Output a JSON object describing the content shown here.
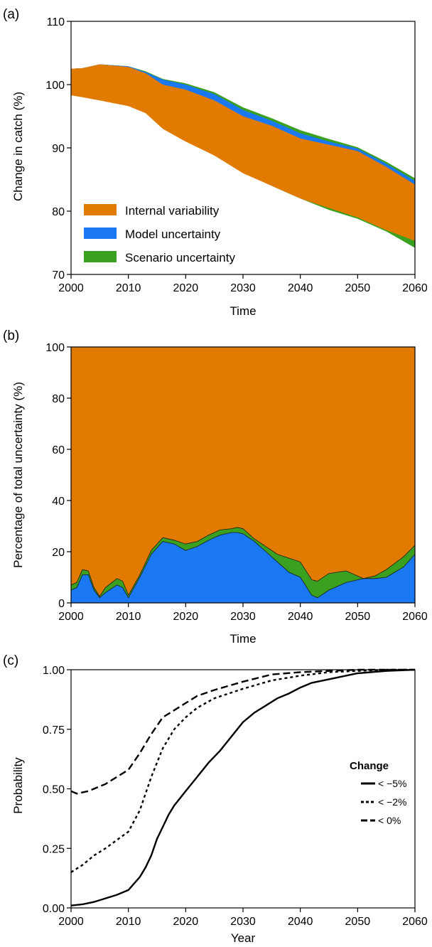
{
  "colors": {
    "internal": "#E07B00",
    "model": "#1A78F2",
    "scenario": "#3AA01F",
    "axis": "#000000"
  },
  "chart_data": [
    {
      "panel_label": "(a)",
      "type": "area",
      "xlabel": "Time",
      "ylabel": "Change in catch (%)",
      "xlim": [
        2000,
        2060
      ],
      "ylim": [
        70,
        110
      ],
      "xticks": [
        2000,
        2010,
        2020,
        2030,
        2040,
        2050,
        2060
      ],
      "yticks": [
        70,
        80,
        90,
        100,
        110
      ],
      "legend_position": "bottom-left",
      "series": [
        {
          "name": "Internal variability",
          "color_key": "internal",
          "x": [
            2000,
            2002,
            2005,
            2010,
            2013,
            2016,
            2020,
            2025,
            2030,
            2035,
            2040,
            2045,
            2050,
            2055,
            2060
          ],
          "upper": [
            102.5,
            102.6,
            103.2,
            102.8,
            101.8,
            100.0,
            99.2,
            97.5,
            95.0,
            93.5,
            91.5,
            90.5,
            89.5,
            87.0,
            84.2
          ],
          "lower": [
            98.3,
            98.0,
            97.5,
            96.6,
            95.5,
            93.0,
            91.0,
            88.8,
            86.0,
            84.0,
            82.0,
            80.5,
            79.0,
            77.0,
            75.3
          ]
        },
        {
          "name": "Model uncertainty",
          "color_key": "model",
          "x": [
            2000,
            2002,
            2005,
            2010,
            2013,
            2016,
            2020,
            2025,
            2030,
            2035,
            2040,
            2045,
            2050,
            2055,
            2060
          ],
          "upper": [
            102.5,
            102.6,
            103.2,
            102.9,
            102.0,
            100.8,
            100.0,
            98.5,
            96.0,
            94.3,
            92.3,
            91.0,
            89.9,
            87.5,
            84.8
          ],
          "lower": [
            98.7,
            98.3,
            97.8,
            96.8,
            95.7,
            93.5,
            91.5,
            89.6,
            86.8,
            84.6,
            82.5,
            81.0,
            79.4,
            77.5,
            75.8
          ]
        },
        {
          "name": "Scenario uncertainty",
          "color_key": "scenario",
          "x": [
            2000,
            2002,
            2005,
            2010,
            2013,
            2016,
            2020,
            2025,
            2030,
            2035,
            2040,
            2045,
            2050,
            2055,
            2060
          ],
          "upper": [
            102.5,
            102.6,
            103.2,
            102.9,
            102.1,
            100.9,
            100.2,
            98.8,
            96.4,
            94.7,
            92.8,
            91.4,
            90.1,
            87.8,
            85.2
          ],
          "lower": [
            98.7,
            98.3,
            97.8,
            96.8,
            95.6,
            93.3,
            91.3,
            89.3,
            86.4,
            84.0,
            82.0,
            80.2,
            78.8,
            76.8,
            74.2
          ]
        }
      ]
    },
    {
      "panel_label": "(b)",
      "type": "area",
      "xlabel": "Time",
      "ylabel": "Percentage of total uncertainty (%)",
      "xlim": [
        2000,
        2060
      ],
      "ylim": [
        0,
        100
      ],
      "xticks": [
        2000,
        2010,
        2020,
        2030,
        2040,
        2050,
        2060
      ],
      "yticks": [
        0,
        20,
        40,
        60,
        80,
        100
      ],
      "x": [
        2000,
        2001,
        2002,
        2003,
        2004,
        2005,
        2006,
        2008,
        2009,
        2010,
        2012,
        2014,
        2016,
        2018,
        2020,
        2022,
        2024,
        2026,
        2028,
        2029,
        2030,
        2032,
        2034,
        2036,
        2038,
        2040,
        2042,
        2043,
        2045,
        2048,
        2050,
        2051,
        2053,
        2055,
        2058,
        2060
      ],
      "series": [
        {
          "name": "Model uncertainty",
          "color_key": "model",
          "values": [
            5,
            6,
            11,
            11,
            5,
            2,
            4,
            7,
            6,
            2,
            10,
            19,
            24,
            23,
            20.5,
            22,
            24.5,
            26.5,
            27.5,
            27.5,
            27,
            24,
            20,
            16,
            12,
            10,
            3,
            2,
            5,
            8,
            9,
            9.5,
            9.5,
            10,
            14,
            19
          ]
        },
        {
          "name": "Scenario uncertainty",
          "color_key": "scenario",
          "values": [
            7,
            8,
            13,
            12.5,
            6,
            2.5,
            6,
            9.5,
            8.5,
            3,
            11,
            20.5,
            25.5,
            24.5,
            23,
            24,
            26.5,
            28.5,
            29,
            29.5,
            29,
            25,
            22,
            19,
            17.5,
            16,
            9,
            8.5,
            11.5,
            12.5,
            10.5,
            9.5,
            10.5,
            13,
            18,
            22.5
          ]
        },
        {
          "name": "Internal variability",
          "color_key": "internal",
          "values": [
            100,
            100,
            100,
            100,
            100,
            100,
            100,
            100,
            100,
            100,
            100,
            100,
            100,
            100,
            100,
            100,
            100,
            100,
            100,
            100,
            100,
            100,
            100,
            100,
            100,
            100,
            100,
            100,
            100,
            100,
            100,
            100,
            100,
            100,
            100,
            100
          ]
        }
      ]
    },
    {
      "panel_label": "(c)",
      "type": "line",
      "xlabel": "Year",
      "ylabel": "Probability",
      "xlim": [
        2000,
        2060
      ],
      "ylim": [
        0,
        1
      ],
      "xticks": [
        2000,
        2010,
        2020,
        2030,
        2040,
        2050,
        2060
      ],
      "yticks": [
        "0.00",
        "0.25",
        "0.50",
        "0.75",
        "1.00"
      ],
      "legend_title": "Change",
      "legend_position": "right",
      "series": [
        {
          "name": "< −5%",
          "dash": "solid",
          "x": [
            2000,
            2002,
            2004,
            2006,
            2008,
            2010,
            2012,
            2013,
            2014,
            2015,
            2016,
            2017,
            2018,
            2020,
            2022,
            2024,
            2026,
            2028,
            2030,
            2032,
            2034,
            2036,
            2038,
            2040,
            2042,
            2045,
            2050,
            2055,
            2060
          ],
          "y": [
            0.01,
            0.015,
            0.025,
            0.04,
            0.055,
            0.075,
            0.13,
            0.17,
            0.22,
            0.29,
            0.34,
            0.39,
            0.43,
            0.49,
            0.55,
            0.61,
            0.66,
            0.72,
            0.78,
            0.82,
            0.85,
            0.88,
            0.9,
            0.925,
            0.945,
            0.96,
            0.985,
            0.995,
            1.0
          ]
        },
        {
          "name": "< −2%",
          "dash": "dotted",
          "x": [
            2000,
            2002,
            2004,
            2006,
            2008,
            2010,
            2012,
            2014,
            2016,
            2018,
            2020,
            2022,
            2025,
            2030,
            2035,
            2040,
            2045,
            2050,
            2055,
            2060
          ],
          "y": [
            0.15,
            0.18,
            0.22,
            0.25,
            0.285,
            0.32,
            0.41,
            0.55,
            0.67,
            0.75,
            0.8,
            0.84,
            0.88,
            0.92,
            0.955,
            0.975,
            0.99,
            0.995,
            1.0,
            1.0
          ]
        },
        {
          "name": "< 0%",
          "dash": "dashed",
          "x": [
            2000,
            2001,
            2003,
            2006,
            2008,
            2010,
            2012,
            2014,
            2016,
            2018,
            2020,
            2022,
            2025,
            2030,
            2035,
            2040,
            2045,
            2050,
            2055,
            2060
          ],
          "y": [
            0.49,
            0.48,
            0.49,
            0.52,
            0.55,
            0.58,
            0.65,
            0.73,
            0.8,
            0.83,
            0.86,
            0.89,
            0.915,
            0.95,
            0.98,
            0.99,
            0.995,
            1.0,
            1.0,
            1.0
          ]
        }
      ]
    }
  ]
}
